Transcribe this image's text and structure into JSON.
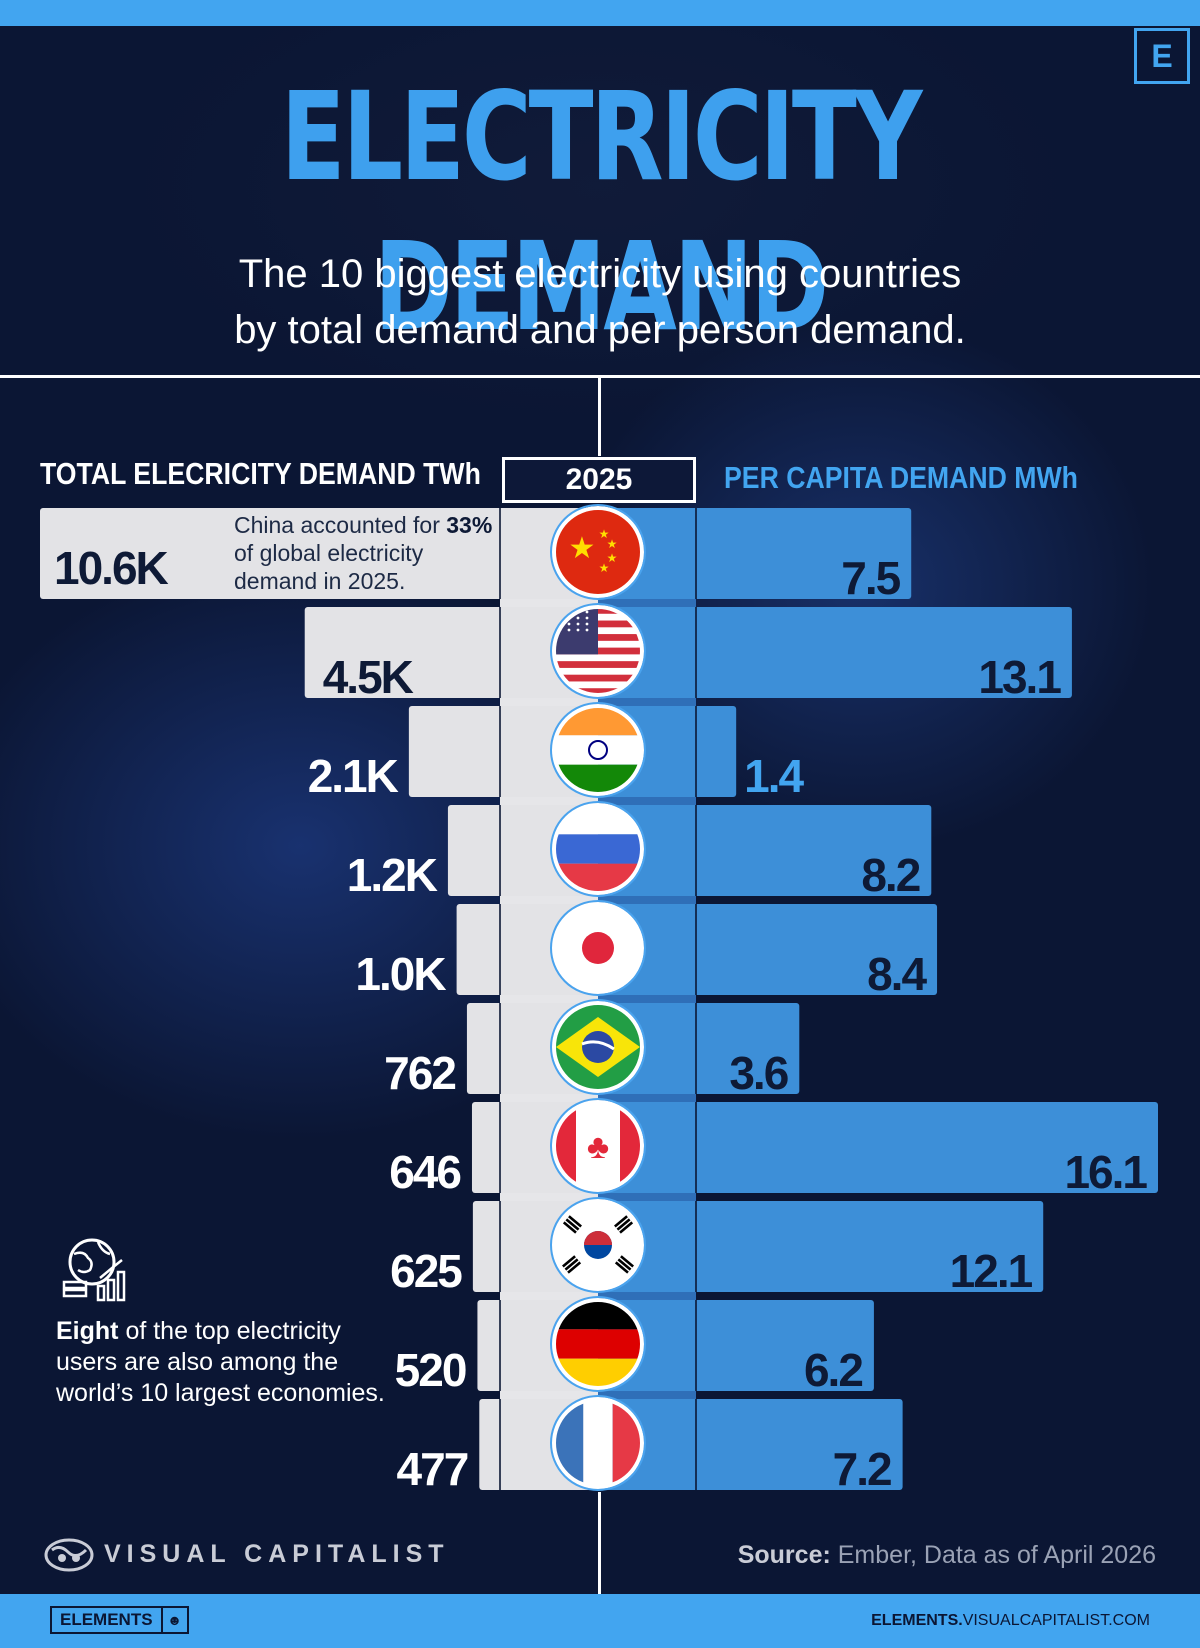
{
  "header": {
    "title": "ELECTRICITY DEMAND",
    "corner_logo": "E",
    "subtitle_line1": "The 10 biggest electricity using countries",
    "subtitle_line2": "by total demand and per person demand."
  },
  "columns": {
    "left_header": "TOTAL ELECRICITY DEMAND TWh",
    "year": "2025",
    "right_header": "PER CAPITA DEMAND MWh"
  },
  "annotations": {
    "china_pre": "China accounted for ",
    "china_pct": "33%",
    "china_post": " of global electricity demand in 2025.",
    "note_bold": "Eight",
    "note_rest": " of the top electricity users are also among the world’s 10 largest economies."
  },
  "footer": {
    "brand": "VISUAL CAPITALIST",
    "source_label": "Source:",
    "source_text": " Ember, Data as of April 2026",
    "badge": "ELEMENTS",
    "site_bold": "ELEMENTS.",
    "site_rest": "VISUALCAPITALIST.COM"
  },
  "colors": {
    "accent": "#42a5f0",
    "left_bar": "#e3e3e6",
    "right_bar": "#3d8fd8",
    "background": "#0b1634",
    "dark_text": "#0e1a36"
  },
  "chart_data": {
    "type": "bar",
    "categories": [
      "China",
      "United States",
      "India",
      "Russia",
      "Japan",
      "Brazil",
      "Canada",
      "South Korea",
      "Germany",
      "France"
    ],
    "flag_icons": [
      "china-flag-icon",
      "usa-flag-icon",
      "india-flag-icon",
      "russia-flag-icon",
      "japan-flag-icon",
      "brazil-flag-icon",
      "canada-flag-icon",
      "south-korea-flag-icon",
      "germany-flag-icon",
      "france-flag-icon"
    ],
    "series": [
      {
        "name": "TOTAL ELECRICITY DEMAND TWh",
        "values": [
          10600,
          4500,
          2100,
          1200,
          1000,
          762,
          646,
          625,
          520,
          477
        ],
        "labels": [
          "10.6K",
          "4.5K",
          "2.1K",
          "1.2K",
          "1.0K",
          "762",
          "646",
          "625",
          "520",
          "477"
        ]
      },
      {
        "name": "PER CAPITA DEMAND MWh",
        "values": [
          7.5,
          13.1,
          1.4,
          8.2,
          8.4,
          3.6,
          16.1,
          12.1,
          6.2,
          7.2
        ],
        "labels": [
          "7.5",
          "13.1",
          "1.4",
          "8.2",
          "8.4",
          "3.6",
          "16.1",
          "12.1",
          "6.2",
          "7.2"
        ]
      }
    ],
    "layout": "back-to-back horizontal bars"
  }
}
